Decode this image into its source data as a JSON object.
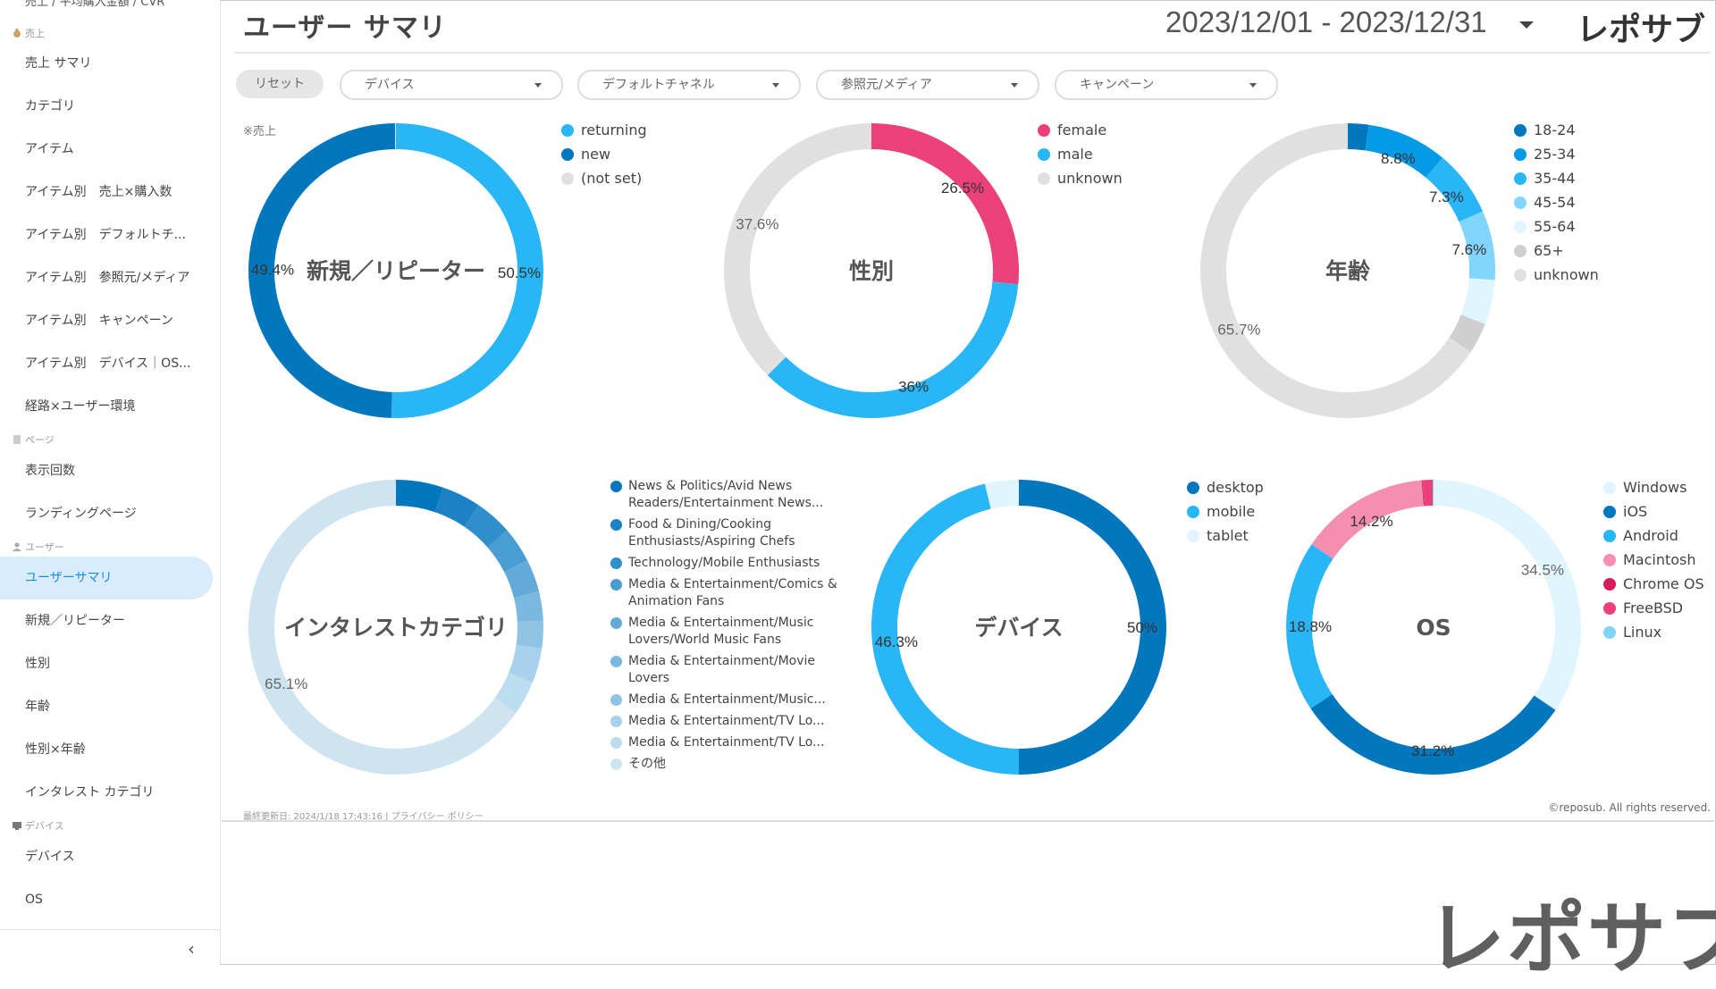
{
  "sidebar": {
    "cut_item": "売上 / 平均購入金額 / CVR",
    "sections": [
      {
        "label": "売上",
        "icon": "money-bag-icon",
        "items": [
          "売上 サマリ",
          "カテゴリ",
          "アイテム",
          "アイテム別　売上×購入数",
          "アイテム別　デフォルトチ...",
          "アイテム別　参照元/メディア",
          "アイテム別　キャンペーン",
          "アイテム別　デバイス｜OS...",
          "経路×ユーザー環境"
        ]
      },
      {
        "label": "ページ",
        "icon": "page-icon",
        "items": [
          "表示回数",
          "ランディングページ"
        ]
      },
      {
        "label": "ユーザー",
        "icon": "user-icon",
        "items": [
          "ユーザーサマリ",
          "新規／リピーター",
          "性別",
          "年齢",
          "性別×年齢",
          "インタレスト カテゴリ"
        ]
      },
      {
        "label": "デバイス",
        "icon": "monitor-icon",
        "items": [
          "デバイス",
          "OS"
        ]
      }
    ],
    "active_item": "ユーザーサマリ",
    "collapse_label": "‹"
  },
  "header": {
    "title": "ユーザー サマリ",
    "date_range": "2023/12/01 - 2023/12/31",
    "brand": "レポサブ"
  },
  "filters": {
    "reset": "リセット",
    "items": [
      "デバイス",
      "デフォルトチャネル",
      "参照元/メディア",
      "キャンペーン"
    ]
  },
  "note": "※売上",
  "colors": {
    "accent": "#1a8de0",
    "active_bg": "#d8ecfb"
  },
  "chart_data": [
    {
      "type": "pie",
      "title": "新規／リピーター",
      "categories": [
        "returning",
        "new",
        "(not set)"
      ],
      "values": [
        50.5,
        49.4,
        0.1
      ],
      "colors": [
        "#29b6f6",
        "#0277bd",
        "#e0e0e0"
      ],
      "labels": [
        "50.5%",
        "49.4%",
        ""
      ]
    },
    {
      "type": "pie",
      "title": "性別",
      "categories": [
        "female",
        "male",
        "unknown"
      ],
      "values": [
        26.5,
        36,
        37.6
      ],
      "colors": [
        "#ec407a",
        "#29b6f6",
        "#e0e0e0"
      ],
      "labels": [
        "26.5%",
        "36%",
        "37.6%"
      ]
    },
    {
      "type": "pie",
      "title": "年齢",
      "categories": [
        "18-24",
        "25-34",
        "35-44",
        "45-54",
        "55-64",
        "65+",
        "unknown"
      ],
      "values": [
        2.3,
        8.8,
        7.3,
        7.6,
        4.9,
        3.4,
        65.7
      ],
      "colors": [
        "#0277bd",
        "#039be5",
        "#29b6f6",
        "#81d4fa",
        "#e1f5fe",
        "#cfcfcf",
        "#e0e0e0"
      ],
      "labels": [
        "",
        "8.8%",
        "7.3%",
        "7.6%",
        "",
        "",
        "65.7%"
      ]
    },
    {
      "type": "pie",
      "title": "インタレストカテゴリ",
      "categories": [
        "News & Politics/Avid News Readers/Entertainment News...",
        "Food & Dining/Cooking Enthusiasts/Aspiring Chefs",
        "Technology/Mobile Enthusiasts",
        "Media & Entertainment/Comics & Animation Fans",
        "Media & Entertainment/Music Lovers/World Music Fans",
        "Media & Entertainment/Movie Lovers",
        "Media & Entertainment/Music...",
        "Media & Entertainment/TV Lo...",
        "Media & Entertainment/TV Lo...",
        "その他"
      ],
      "values": [
        5.2,
        4.3,
        4.1,
        3.9,
        3.6,
        3.2,
        3.0,
        3.8,
        3.8,
        65.1
      ],
      "colors": [
        "#0277bd",
        "#1b82c4",
        "#2f8fcb",
        "#4a9dd2",
        "#62abd9",
        "#7ab8df",
        "#8fc4e5",
        "#a8d2ec",
        "#bcdcf0",
        "#cfe4f1"
      ],
      "labels": [
        "",
        "",
        "",
        "",
        "",
        "",
        "",
        "",
        "",
        "65.1%"
      ]
    },
    {
      "type": "pie",
      "title": "デバイス",
      "categories": [
        "desktop",
        "mobile",
        "tablet"
      ],
      "values": [
        50,
        46.3,
        3.7
      ],
      "colors": [
        "#0277bd",
        "#29b6f6",
        "#e1f5fe"
      ],
      "labels": [
        "50%",
        "46.3%",
        ""
      ]
    },
    {
      "type": "pie",
      "title": "OS",
      "categories": [
        "Windows",
        "iOS",
        "Android",
        "Macintosh",
        "Chrome OS",
        "FreeBSD",
        "Linux"
      ],
      "values": [
        34.5,
        31.2,
        18.8,
        14.2,
        0.1,
        1.1,
        0.1
      ],
      "colors": [
        "#e1f5fe",
        "#0277bd",
        "#29b6f6",
        "#f48fb1",
        "#d81b60",
        "#ec407a",
        "#81d4fa"
      ],
      "labels": [
        "34.5%",
        "31.2%",
        "18.8%",
        "14.2%",
        "",
        "",
        ""
      ]
    }
  ],
  "footer": {
    "updated": "最終更新日: 2024/1/18 17:43:16",
    "privacy": "プライバシー ポリシー",
    "copyright": "©reposub. All rights reserved."
  },
  "watermark": "レポサブ"
}
